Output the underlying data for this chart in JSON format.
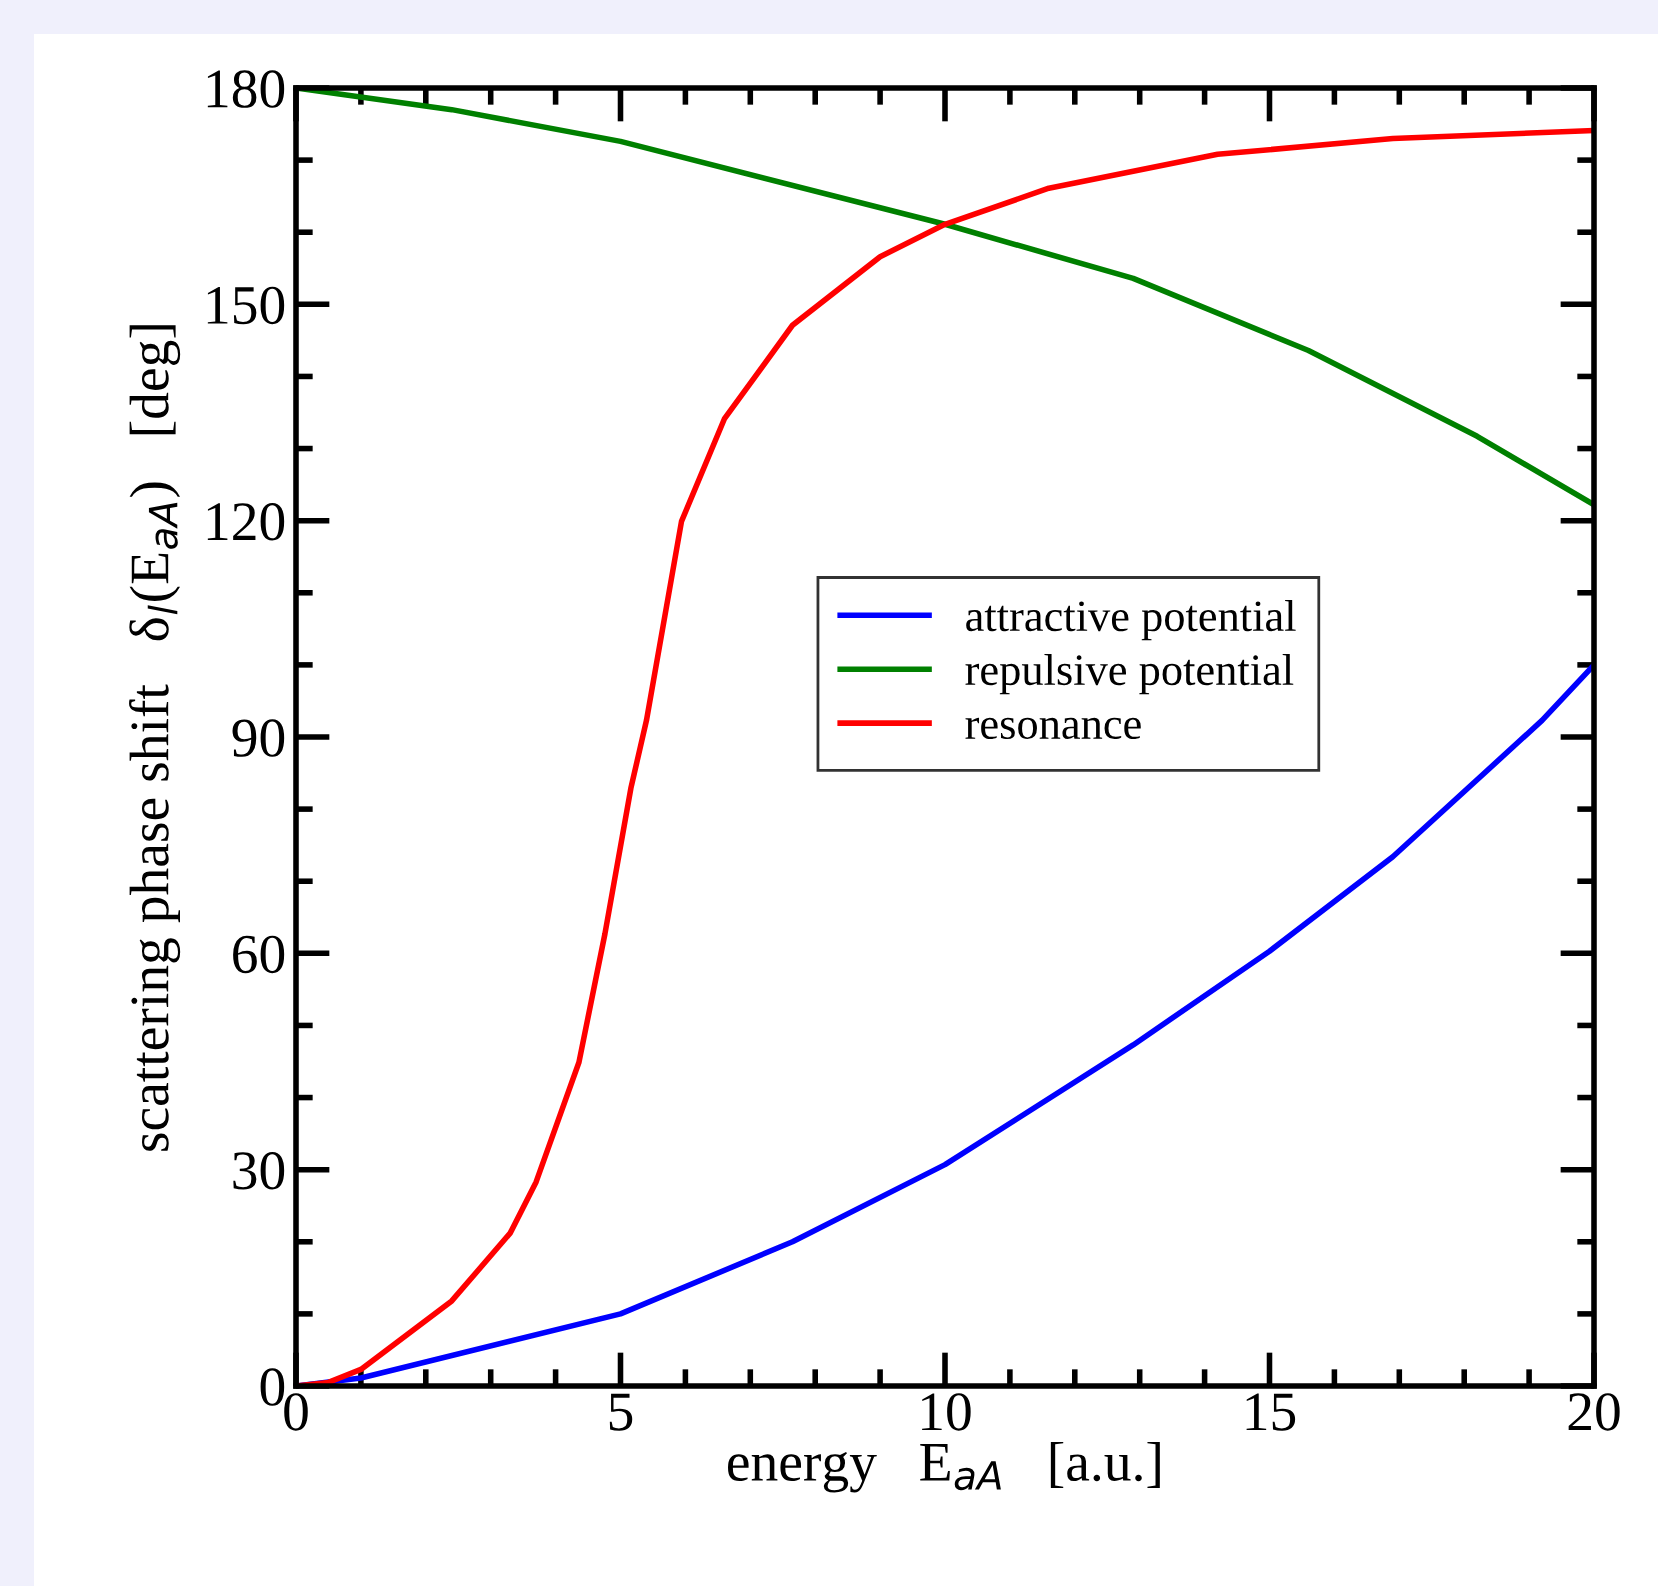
{
  "chart_data": {
    "type": "line",
    "xlabel": "energy   E$_{aA}$   [a.u.]",
    "ylabel": "scattering phase shift   δ$_{l}$(E$_{aA}$)   [deg]",
    "xlim": [
      0,
      20
    ],
    "ylim": [
      0,
      180
    ],
    "xticks": [
      0,
      {
        "value": 1,
        "label": null
      },
      {
        "value": 2,
        "label": null
      },
      {
        "value": 3,
        "label": null
      },
      {
        "value": 4,
        "label": null
      },
      5,
      {
        "value": 6,
        "label": null
      },
      {
        "value": 7,
        "label": null
      },
      {
        "value": 8,
        "label": null
      },
      {
        "value": 9,
        "label": null
      },
      10,
      {
        "value": 11,
        "label": null
      },
      {
        "value": 12,
        "label": null
      },
      {
        "value": 13,
        "label": null
      },
      {
        "value": 14,
        "label": null
      },
      15,
      {
        "value": 16,
        "label": null
      },
      {
        "value": 17,
        "label": null
      },
      {
        "value": 18,
        "label": null
      },
      {
        "value": 19,
        "label": null
      },
      20
    ],
    "yticks": [
      0,
      {
        "value": 10,
        "label": null
      },
      {
        "value": 20,
        "label": null
      },
      30,
      {
        "value": 40,
        "label": null
      },
      {
        "value": 50,
        "label": null
      },
      60,
      {
        "value": 70,
        "label": null
      },
      {
        "value": 80,
        "label": null
      },
      90,
      {
        "value": 100,
        "label": null
      },
      {
        "value": 110,
        "label": null
      },
      120,
      {
        "value": 130,
        "label": null
      },
      {
        "value": 140,
        "label": null
      },
      150,
      {
        "value": 160,
        "label": null
      },
      {
        "value": 170,
        "label": null
      },
      180
    ],
    "grid": false,
    "legend": "center right",
    "marker": "none",
    "line_style": "solid",
    "series": [
      {
        "name": "attractive potential",
        "color": "#0000ff",
        "x": [
          0,
          1,
          5.0,
          7.65,
          10,
          12.9,
          15,
          16.9,
          19.2,
          20
        ],
        "values": [
          0,
          1.1,
          10,
          20,
          30.7,
          47.3,
          60.3,
          73.4,
          92.3,
          100
        ]
      },
      {
        "name": "repulsive potential",
        "color": "#008000",
        "x": [
          0,
          2.4,
          5.0,
          10,
          12.9,
          15.6,
          18.2,
          20
        ],
        "values": [
          180,
          177,
          172.6,
          161.1,
          153.6,
          143.6,
          131.7,
          122.2
        ]
      },
      {
        "name": "resonance",
        "color": "#ff0000",
        "x": [
          0,
          0.5,
          1,
          2.4,
          3.3,
          3.7,
          4.36,
          4.76,
          5.16,
          5.4,
          5.94,
          6.6,
          7.65,
          9,
          10,
          11.6,
          14.2,
          16.9,
          20
        ],
        "values": [
          0,
          0.5,
          2.3,
          11.8,
          21.2,
          28.3,
          44.9,
          62.7,
          82.9,
          92.3,
          119.9,
          134.1,
          147.1,
          156.6,
          161.1,
          166.1,
          170.8,
          173,
          174.1
        ]
      }
    ]
  }
}
